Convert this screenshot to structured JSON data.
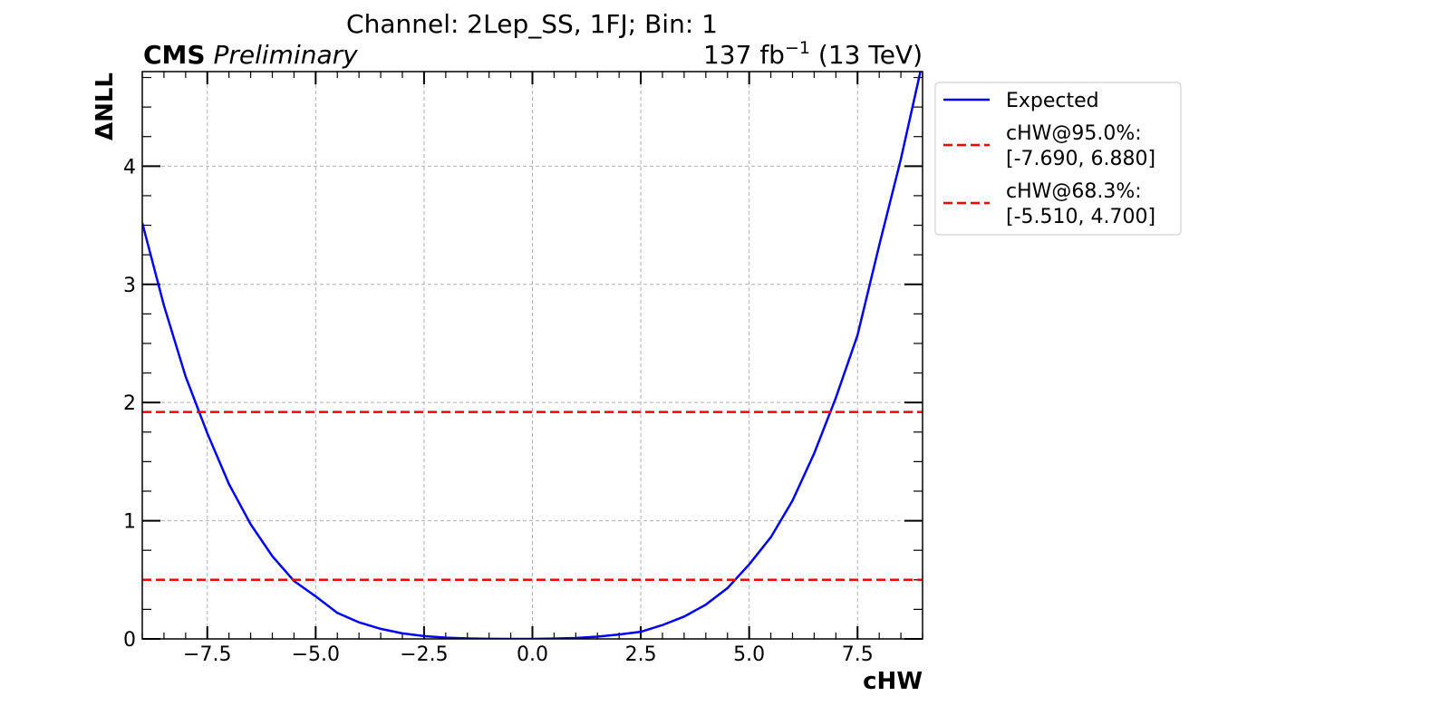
{
  "chart_data": {
    "type": "line",
    "title": "Channel: 2Lep_SS, 1FJ; Bin: 1",
    "experiment": "CMS",
    "status": "Preliminary",
    "lumi": [
      "137 fb",
      "−1",
      "(13 TeV)"
    ],
    "xlabel": "cHW",
    "ylabel": "ΔNLL",
    "xlim": [
      -9,
      9
    ],
    "ylim": [
      0,
      4.8
    ],
    "xticks": [
      {
        "value": -7.5,
        "label": "−7.5"
      },
      {
        "value": -5,
        "label": "−5.0"
      },
      {
        "value": -2.5,
        "label": "−2.5"
      },
      {
        "value": 0,
        "label": "0.0"
      },
      {
        "value": 2.5,
        "label": "2.5"
      },
      {
        "value": 5,
        "label": "5.0"
      },
      {
        "value": 7.5,
        "label": "7.5"
      }
    ],
    "yticks": [
      0,
      1,
      2,
      3,
      4
    ],
    "grid": true,
    "minor_ticks": true,
    "legend": "outside-upper-right",
    "series": [
      {
        "name": [
          "Expected"
        ],
        "color": "#0000ff",
        "style": "solid",
        "x": [
          -9,
          -8.5,
          -8,
          -7.5,
          -7,
          -6.5,
          -6,
          -5.5,
          -5,
          -4.5,
          -4,
          -3.5,
          -3,
          -2.5,
          -2,
          -1.5,
          -1,
          -0.5,
          0,
          0.5,
          1,
          1.5,
          2,
          2.5,
          3,
          3.5,
          4,
          4.5,
          5,
          5.5,
          6,
          6.5,
          7,
          7.5,
          8,
          8.5,
          8.95
        ],
        "values": [
          3.52,
          2.82,
          2.22,
          1.74,
          1.31,
          0.97,
          0.7,
          0.49,
          0.36,
          0.22,
          0.14,
          0.085,
          0.047,
          0.024,
          0.011,
          0.004,
          0.001,
          0,
          0,
          0.003,
          0.008,
          0.019,
          0.037,
          0.06,
          0.117,
          0.189,
          0.29,
          0.43,
          0.63,
          0.86,
          1.17,
          1.57,
          2.04,
          2.57,
          3.33,
          4.06,
          4.8
        ]
      },
      {
        "name": [
          "cHW@95.0%:",
          "[-7.690, 6.880]"
        ],
        "color": "#ff0000",
        "style": "dashed",
        "y": 1.92
      },
      {
        "name": [
          "cHW@68.3%:",
          "[-5.510, 4.700]"
        ],
        "color": "#ff0000",
        "style": "dashed",
        "y": 0.5
      }
    ]
  }
}
